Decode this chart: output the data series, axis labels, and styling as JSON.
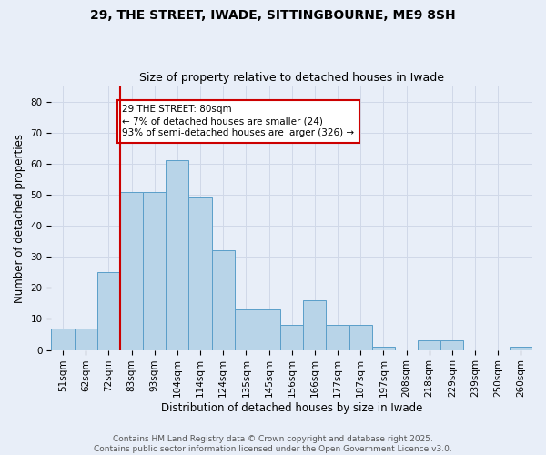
{
  "title_line1": "29, THE STREET, IWADE, SITTINGBOURNE, ME9 8SH",
  "title_line2": "Size of property relative to detached houses in Iwade",
  "xlabel": "Distribution of detached houses by size in Iwade",
  "ylabel": "Number of detached properties",
  "categories": [
    "51sqm",
    "62sqm",
    "72sqm",
    "83sqm",
    "93sqm",
    "104sqm",
    "114sqm",
    "124sqm",
    "135sqm",
    "145sqm",
    "156sqm",
    "166sqm",
    "177sqm",
    "187sqm",
    "197sqm",
    "208sqm",
    "218sqm",
    "229sqm",
    "239sqm",
    "250sqm",
    "260sqm"
  ],
  "values": [
    7,
    7,
    25,
    51,
    51,
    61,
    49,
    32,
    13,
    13,
    8,
    16,
    8,
    8,
    1,
    0,
    3,
    3,
    0,
    0,
    1
  ],
  "bar_color": "#b8d4e8",
  "bar_edge_color": "#5a9ec9",
  "marker_color": "#cc0000",
  "annotation_text": "29 THE STREET: 80sqm\n← 7% of detached houses are smaller (24)\n93% of semi-detached houses are larger (326) →",
  "annotation_box_color": "#ffffff",
  "annotation_box_edge_color": "#cc0000",
  "ylim": [
    0,
    85
  ],
  "yticks": [
    0,
    10,
    20,
    30,
    40,
    50,
    60,
    70,
    80
  ],
  "grid_color": "#d0d8e8",
  "bg_color": "#e8eef8",
  "footer_text": "Contains HM Land Registry data © Crown copyright and database right 2025.\nContains public sector information licensed under the Open Government Licence v3.0.",
  "title_fontsize": 10,
  "subtitle_fontsize": 9,
  "axis_label_fontsize": 8.5,
  "tick_fontsize": 7.5,
  "annotation_fontsize": 7.5,
  "footer_fontsize": 6.5
}
